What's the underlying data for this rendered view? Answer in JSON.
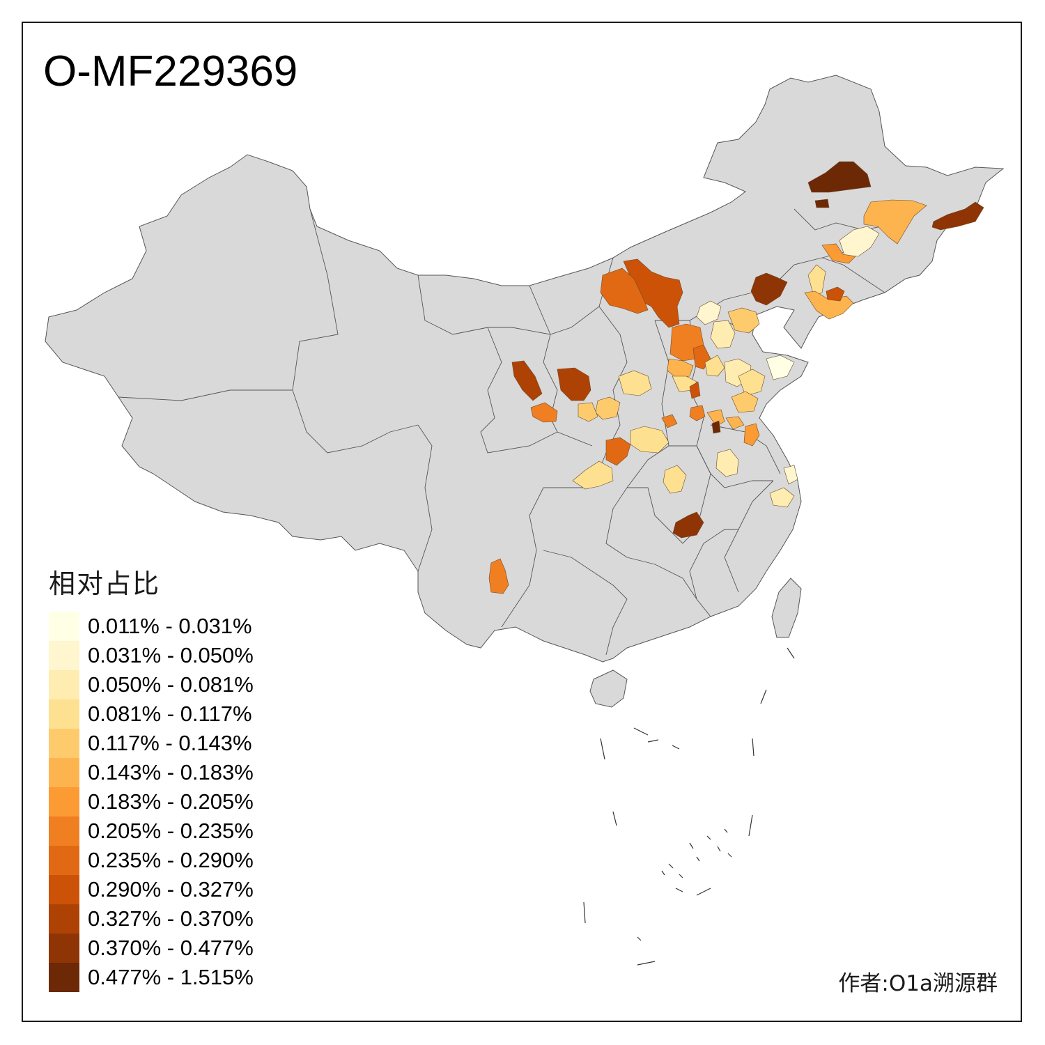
{
  "title": "O-MF229369",
  "legend": {
    "title": "相对占比",
    "bins": [
      {
        "label": "0.011% - 0.031%",
        "color": "#ffffe5"
      },
      {
        "label": "0.031% - 0.050%",
        "color": "#fff6cf"
      },
      {
        "label": "0.050% - 0.081%",
        "color": "#feecb1"
      },
      {
        "label": "0.081% - 0.117%",
        "color": "#fee091"
      },
      {
        "label": "0.117% - 0.143%",
        "color": "#fecb6c"
      },
      {
        "label": "0.143% - 0.183%",
        "color": "#feb44e"
      },
      {
        "label": "0.183% - 0.205%",
        "color": "#fc9a33"
      },
      {
        "label": "0.205% - 0.235%",
        "color": "#f07f22"
      },
      {
        "label": "0.235% - 0.290%",
        "color": "#e16914"
      },
      {
        "label": "0.290% - 0.327%",
        "color": "#cc5208"
      },
      {
        "label": "0.327% - 0.370%",
        "color": "#ae4204"
      },
      {
        "label": "0.370% - 0.477%",
        "color": "#8f3404"
      },
      {
        "label": "0.477% - 1.515%",
        "color": "#6d2805"
      }
    ]
  },
  "credit": "作者:O1a溯源群",
  "colors": {
    "base_land": "#d9d9d9",
    "border": "#555555",
    "frame": "#1a1a1a"
  }
}
